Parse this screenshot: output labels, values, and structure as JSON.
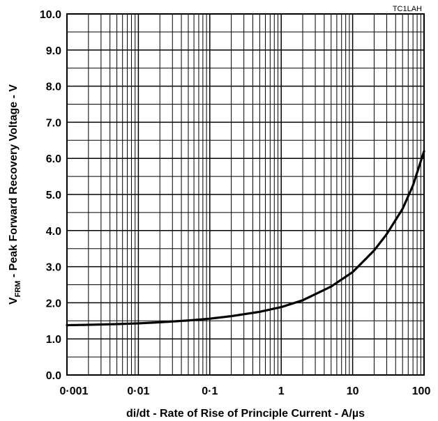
{
  "chart_data": {
    "type": "line",
    "corner_label": "TC1LAH",
    "xlabel": "di/dt - Rate of Rise of Principle Current - A/µs",
    "ylabel": {
      "prefix": "V",
      "subscript": "FRM",
      "rest": " - Peak Forward Recovery Voltage - V"
    },
    "x_scale": "log",
    "xlim": [
      0.001,
      100
    ],
    "ylim": [
      0,
      10
    ],
    "grid": true,
    "x_tick_values": [
      0.001,
      0.01,
      0.1,
      1,
      10,
      100
    ],
    "x_tick_labels": [
      "0·001",
      "0·01",
      "0·1",
      "1",
      "10",
      "100"
    ],
    "y_tick_values": [
      0,
      1,
      2,
      3,
      4,
      5,
      6,
      7,
      8,
      9,
      10
    ],
    "y_tick_labels": [
      "0.0",
      "1.0",
      "2.0",
      "3.0",
      "4.0",
      "5.0",
      "6.0",
      "7.0",
      "8.0",
      "9.0",
      "10.0"
    ],
    "series": [
      {
        "x": [
          0.001,
          0.002,
          0.005,
          0.01,
          0.02,
          0.05,
          0.1,
          0.2,
          0.5,
          1,
          2,
          5,
          10,
          20,
          30,
          50,
          70,
          100
        ],
        "y": [
          1.38,
          1.39,
          1.41,
          1.43,
          1.46,
          1.51,
          1.56,
          1.63,
          1.75,
          1.88,
          2.07,
          2.45,
          2.85,
          3.45,
          3.9,
          4.6,
          5.25,
          6.2
        ]
      }
    ]
  }
}
